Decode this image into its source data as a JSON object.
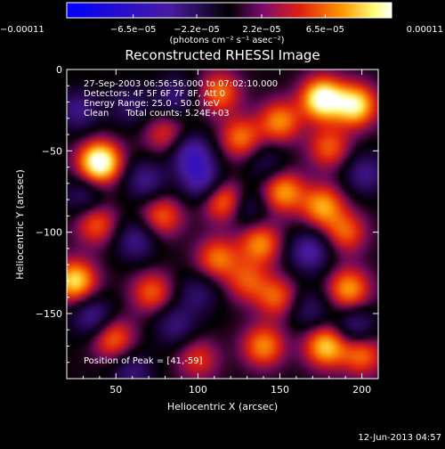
{
  "chart_data": {
    "type": "heatmap",
    "title": "Reconstructed RHESSI Image",
    "xlabel": "Heliocentric X (arcsec)",
    "ylabel": "Heliocentric Y (arcsec)",
    "xlim": [
      20,
      210
    ],
    "ylim": [
      -190,
      0
    ],
    "x_ticks": [
      50,
      100,
      150,
      200
    ],
    "x_tick_labels": [
      "50",
      "100",
      "150",
      "200"
    ],
    "y_ticks": [
      0,
      -50,
      -100,
      -150
    ],
    "y_tick_labels": [
      "0",
      "−50",
      "−100",
      "−150"
    ],
    "colorbar": {
      "min": -0.00011,
      "max": 0.00011,
      "ticks": [
        -0.00011,
        -6.5e-05,
        -2.2e-05,
        2.2e-05,
        6.5e-05,
        0.00011
      ],
      "tick_labels": [
        "−0.00011",
        "−6.5e−05",
        "−2.2e−05",
        "2.2e−05",
        "6.5e−05",
        "0.00011"
      ],
      "unit_label": "(photons cm⁻² s⁻¹ asec⁻²)",
      "colors": [
        "#0000ff",
        "#4a1aa0",
        "#000000",
        "#7a0a70",
        "#e02010",
        "#ff9a00",
        "#ffff80",
        "#ffffff"
      ]
    },
    "annotations": [
      "27-Sep-2003 06:56:56.000 to 07:02:10.000",
      "Detectors: 4F 5F 6F 7F 8F, Att 0",
      "Energy Range: 25.0 - 50.0 keV",
      "Clean      Total counts: 5.24E+03"
    ],
    "peak_label": "Position of Peak = [41,-59]",
    "peak": [
      41,
      -59
    ],
    "blobs": [
      {
        "x": 40,
        "y": -57,
        "v": 1.0
      },
      {
        "x": 176,
        "y": -18,
        "v": 0.95
      },
      {
        "x": 196,
        "y": -22,
        "v": 0.8
      },
      {
        "x": 150,
        "y": -32,
        "v": 0.55
      },
      {
        "x": 113,
        "y": -14,
        "v": 0.5
      },
      {
        "x": 126,
        "y": -42,
        "v": 0.5
      },
      {
        "x": 180,
        "y": -48,
        "v": 0.45
      },
      {
        "x": 80,
        "y": -40,
        "v": 0.35
      },
      {
        "x": 152,
        "y": -75,
        "v": 0.6
      },
      {
        "x": 176,
        "y": -84,
        "v": 0.6
      },
      {
        "x": 116,
        "y": -81,
        "v": 0.55
      },
      {
        "x": 78,
        "y": -90,
        "v": 0.45
      },
      {
        "x": 38,
        "y": -95,
        "v": 0.45
      },
      {
        "x": 138,
        "y": -107,
        "v": 0.55
      },
      {
        "x": 112,
        "y": -116,
        "v": 0.5
      },
      {
        "x": 190,
        "y": -100,
        "v": 0.45
      },
      {
        "x": 25,
        "y": -130,
        "v": 0.75
      },
      {
        "x": 72,
        "y": -137,
        "v": 0.45
      },
      {
        "x": 148,
        "y": -140,
        "v": 0.45
      },
      {
        "x": 192,
        "y": -135,
        "v": 0.6
      },
      {
        "x": 130,
        "y": -130,
        "v": 0.4
      },
      {
        "x": 48,
        "y": -165,
        "v": 0.5
      },
      {
        "x": 140,
        "y": -170,
        "v": 0.55
      },
      {
        "x": 178,
        "y": -170,
        "v": 0.7
      },
      {
        "x": 200,
        "y": -175,
        "v": 0.5
      },
      {
        "x": 100,
        "y": -178,
        "v": 0.35
      },
      {
        "x": 27,
        "y": -25,
        "v": -0.4
      },
      {
        "x": 58,
        "y": -22,
        "v": -0.3
      },
      {
        "x": 86,
        "y": -16,
        "v": -0.35
      },
      {
        "x": 96,
        "y": -52,
        "v": -0.55
      },
      {
        "x": 102,
        "y": -68,
        "v": -0.5
      },
      {
        "x": 68,
        "y": -68,
        "v": -0.4
      },
      {
        "x": 62,
        "y": -105,
        "v": -0.4
      },
      {
        "x": 30,
        "y": -78,
        "v": -0.3
      },
      {
        "x": 130,
        "y": -85,
        "v": -0.3
      },
      {
        "x": 168,
        "y": -112,
        "v": -0.5
      },
      {
        "x": 202,
        "y": -64,
        "v": -0.4
      },
      {
        "x": 196,
        "y": -158,
        "v": -0.4
      },
      {
        "x": 36,
        "y": -152,
        "v": -0.45
      },
      {
        "x": 86,
        "y": -157,
        "v": -0.35
      },
      {
        "x": 100,
        "y": -138,
        "v": -0.3
      },
      {
        "x": 168,
        "y": -148,
        "v": -0.3
      },
      {
        "x": 60,
        "y": -186,
        "v": -0.35
      },
      {
        "x": 142,
        "y": -58,
        "v": -0.25
      }
    ]
  },
  "footer": {
    "timestamp": "12-Jun-2013 04:57"
  }
}
